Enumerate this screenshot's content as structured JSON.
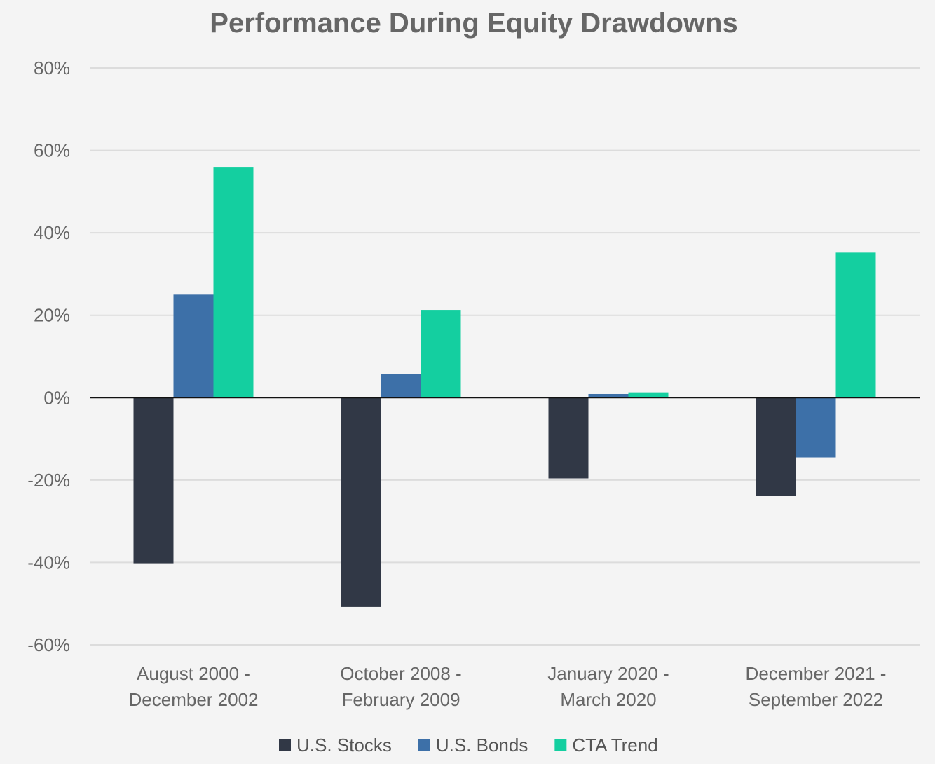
{
  "chart_data": {
    "type": "bar",
    "title": "Performance During Equity Drawdowns",
    "xlabel": "",
    "ylabel": "",
    "categories": [
      [
        "August 2000 -",
        "December 2002"
      ],
      [
        "October 2008 -",
        "February 2009"
      ],
      [
        "January 2020 -",
        "March 2020"
      ],
      [
        "December 2021 -",
        "September 2022"
      ]
    ],
    "series": [
      {
        "name": "U.S. Stocks",
        "color": "#313846",
        "values": [
          -40.2,
          -50.8,
          -19.6,
          -23.9
        ]
      },
      {
        "name": "U.S. Bonds",
        "color": "#3d70a8",
        "values": [
          25.0,
          5.8,
          0.9,
          -14.5
        ]
      },
      {
        "name": "CTA Trend",
        "color": "#14cfa0",
        "values": [
          56.0,
          21.3,
          1.3,
          35.2
        ]
      }
    ],
    "ylim": [
      -60,
      80
    ],
    "yticks": [
      80,
      60,
      40,
      20,
      0,
      -20,
      -40,
      -60
    ],
    "ytick_format": "percent",
    "grid": true,
    "legend_position": "bottom"
  }
}
